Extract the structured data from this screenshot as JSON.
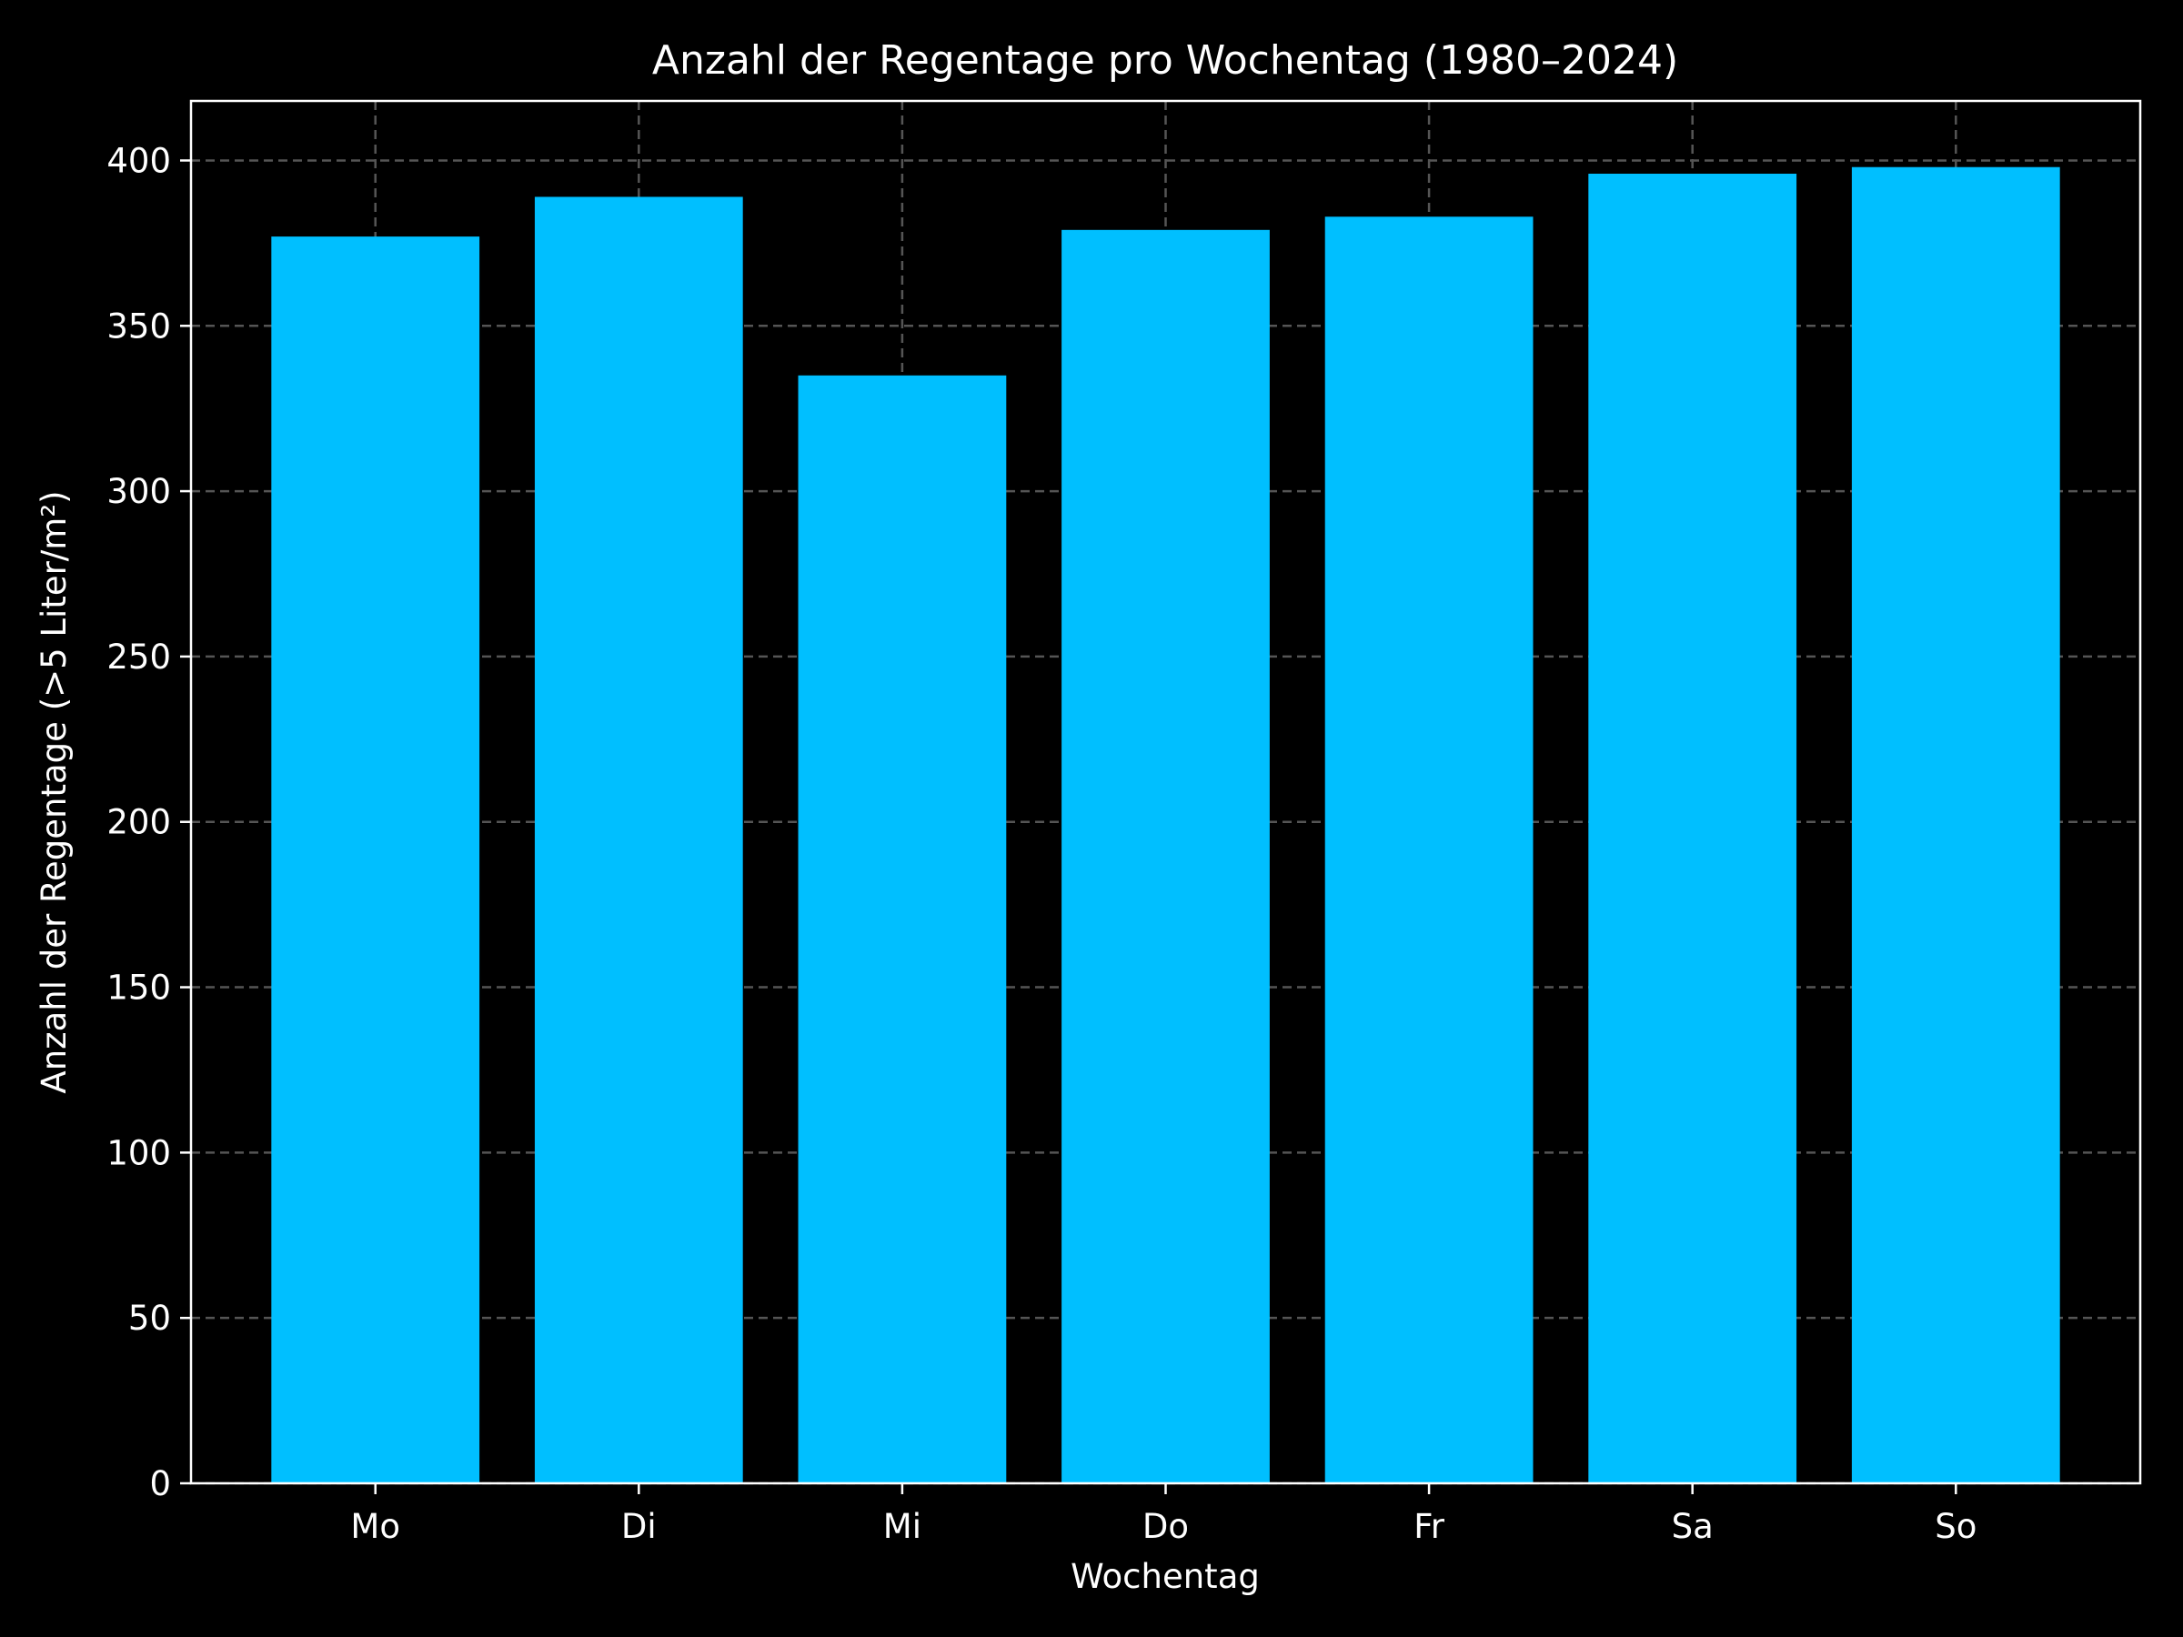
{
  "chart_data": {
    "type": "bar",
    "title": "Anzahl der Regentage pro Wochentag (1980–2024)",
    "xlabel": "Wochentag",
    "ylabel": "Anzahl der Regentage (>5 Liter/m²)",
    "categories": [
      "Mo",
      "Di",
      "Mi",
      "Do",
      "Fr",
      "Sa",
      "So"
    ],
    "values": [
      377,
      389,
      335,
      379,
      383,
      396,
      398
    ],
    "ylim": [
      0,
      418
    ],
    "yticks": [
      0,
      50,
      100,
      150,
      200,
      250,
      300,
      350,
      400
    ],
    "grid": true,
    "grid_style": "dashed",
    "legend": false,
    "colors": {
      "background": "#000000",
      "bar": "#00bfff",
      "axis": "#ffffff",
      "grid": "#555555",
      "text": "#ffffff"
    }
  }
}
